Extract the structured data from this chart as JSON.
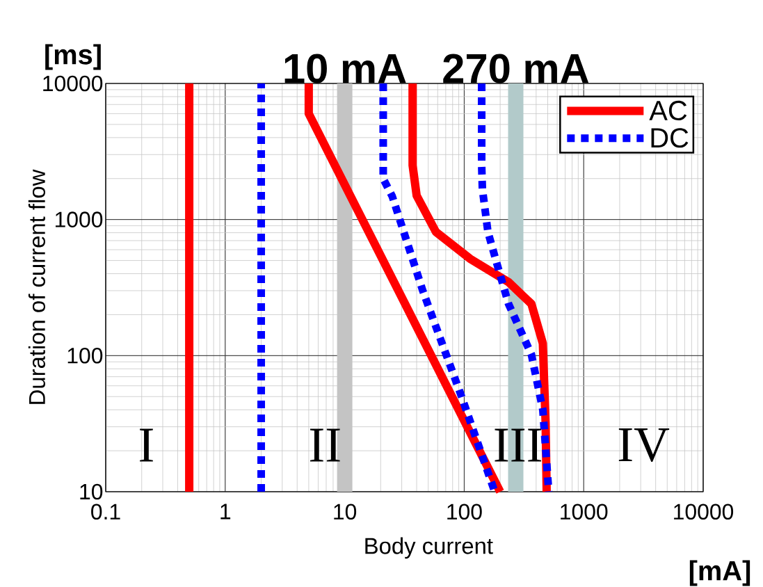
{
  "chart_data": {
    "type": "line",
    "xlabel": "Body current",
    "ylabel": "Duration of current flow",
    "log": "xy",
    "xlim": [
      0.1,
      10000
    ],
    "ylim": [
      10,
      10000
    ],
    "xticks": [
      0.1,
      1,
      10,
      100,
      1000,
      10000
    ],
    "yticks": [
      10,
      100,
      1000,
      10000
    ],
    "grid": true,
    "legend": "top right",
    "series": [
      {
        "name": "AC",
        "color": "#ff0000",
        "line_style": "solid",
        "x": [
          0.5,
          0.5
        ],
        "values": [
          10,
          10000
        ]
      },
      {
        "name": "DC",
        "color": "#0000ff",
        "line_style": "dotted",
        "x": [
          2,
          2
        ],
        "values": [
          10,
          10000
        ]
      },
      {
        "color": "#ff0000",
        "line_style": "solid",
        "x": [
          5,
          5,
          200
        ],
        "values": [
          10000,
          6000,
          10
        ]
      },
      {
        "color": "#0000ff",
        "line_style": "dotted",
        "x": [
          21,
          21,
          25,
          45,
          95,
          180
        ],
        "values": [
          10000,
          2000,
          1480,
          300,
          50,
          10
        ]
      },
      {
        "color": "#ff0000",
        "line_style": "solid",
        "x": [
          37,
          37,
          40,
          58,
          112,
          235,
          365,
          455,
          480,
          490
        ],
        "values": [
          10000,
          2500,
          1500,
          810,
          515,
          347,
          240,
          123,
          32,
          10
        ]
      },
      {
        "color": "#0000ff",
        "line_style": "dotted",
        "x": [
          140,
          140,
          142,
          158,
          187,
          235,
          365,
          455,
          510
        ],
        "values": [
          10000,
          2500,
          1670,
          810,
          480,
          240,
          102,
          40,
          10
        ]
      }
    ],
    "ref_lines": [
      {
        "axis": "x",
        "value": 10,
        "label": "10 mA",
        "color": "#c4c4c4"
      },
      {
        "axis": "x",
        "value": 270,
        "label": "270 mA",
        "color": "#b2caca"
      }
    ],
    "annotations": [
      "[ms]",
      "[mA]",
      "I",
      "II",
      "III",
      "IV"
    ]
  }
}
